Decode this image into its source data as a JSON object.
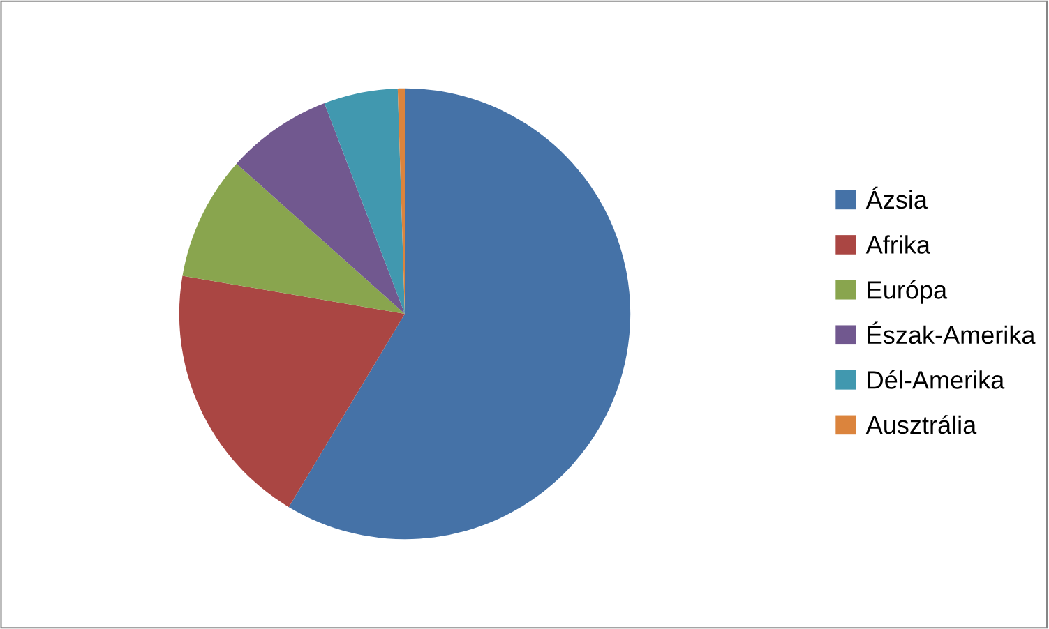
{
  "chart_data": {
    "type": "pie",
    "categories": [
      "Ázsia",
      "Afrika",
      "Európa",
      "Észak-Amerika",
      "Dél-Amerika",
      "Ausztrália"
    ],
    "values": [
      58.6,
      19.1,
      8.9,
      7.6,
      5.3,
      0.5
    ],
    "colors": [
      "#4572a7",
      "#aa4643",
      "#89a54e",
      "#71588f",
      "#4198af",
      "#db843d"
    ],
    "legend": "right"
  }
}
